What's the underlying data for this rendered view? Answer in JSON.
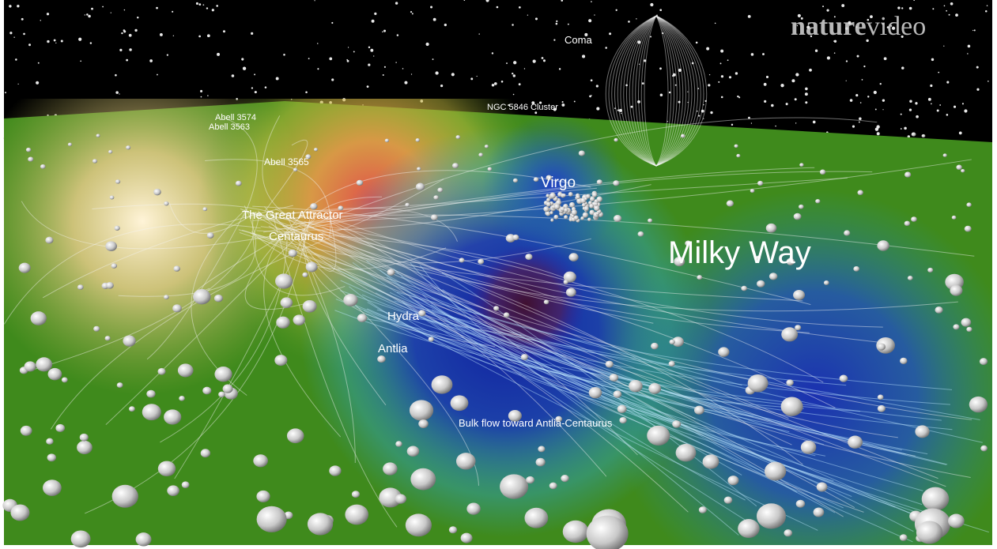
{
  "logo": {
    "bold": "nature",
    "light": "video"
  },
  "labels": {
    "coma": "Coma",
    "ngc": "NGC 5846 Cluster",
    "abell_3574": "Abell 3574",
    "abell_3563": "Abell 3563",
    "abell_3565": "Abell 3565",
    "great_attractor": "The Great Attractor",
    "centaurus": "Centaurus",
    "virgo": "Virgo",
    "milky_way": "Milky Way",
    "hydra": "Hydra",
    "antlia": "Antlia",
    "bulk_flow": "Bulk flow toward Antlia-Centaurus"
  }
}
